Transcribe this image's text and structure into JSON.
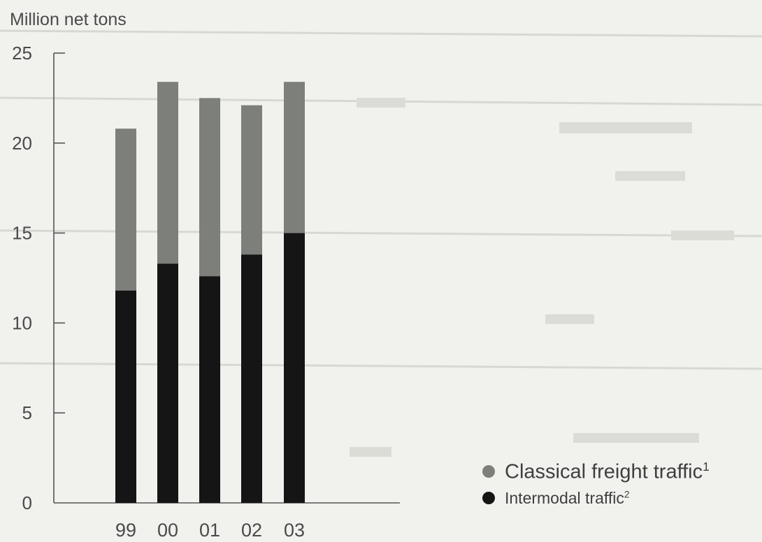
{
  "chart_data": {
    "type": "bar",
    "stacked": true,
    "ylabel": "Million net tons",
    "categories": [
      "99",
      "00",
      "01",
      "02",
      "03"
    ],
    "ylim": [
      0,
      25
    ],
    "yticks": [
      0,
      5,
      10,
      15,
      20,
      25
    ],
    "grid": false,
    "legend_position": "bottom-right",
    "series": [
      {
        "name": "Intermodal traffic",
        "footnote": "2",
        "color": "#151515",
        "values": [
          11.8,
          13.3,
          12.6,
          13.8,
          15.0
        ]
      },
      {
        "name": "Classical freight traffic",
        "footnote": "1",
        "color": "#7c7f7a",
        "values": [
          9.0,
          10.1,
          9.9,
          8.3,
          8.4
        ]
      }
    ]
  },
  "legend": [
    {
      "label": "Classical freight traffic",
      "footnote": "1",
      "color": "#7c7f7a"
    },
    {
      "label": "Intermodal traffic",
      "footnote": "2",
      "color": "#151515"
    }
  ]
}
